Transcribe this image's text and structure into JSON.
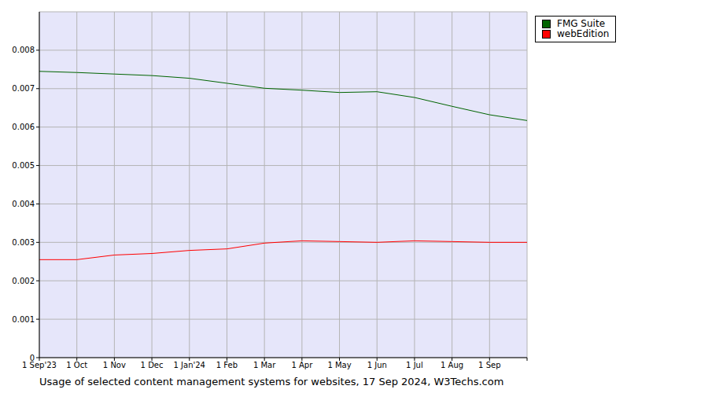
{
  "chart_data": {
    "type": "line",
    "title": "Usage of selected content management systems for websites, 17 Sep 2024, W3Techs.com",
    "categories": [
      "1 Sep'23",
      "1 Oct",
      "1 Nov",
      "1 Dec",
      "1 Jan'24",
      "1 Feb",
      "1 Mar",
      "1 Apr",
      "1 May",
      "1 Jun",
      "1 Jul",
      "1 Aug",
      "1 Sep",
      null
    ],
    "series": [
      {
        "name": "FMG Suite",
        "color": "#006400",
        "values": [
          0.00745,
          0.00742,
          0.00738,
          0.00734,
          0.00727,
          0.00714,
          0.00701,
          0.00696,
          0.0069,
          0.00692,
          0.00677,
          0.00654,
          0.00632,
          0.00617
        ]
      },
      {
        "name": "webEdition",
        "color": "#ff0000",
        "values": [
          0.00255,
          0.00255,
          0.00267,
          0.00271,
          0.00279,
          0.00283,
          0.00298,
          0.00304,
          0.00302,
          0.003,
          0.00304,
          0.00302,
          0.003,
          0.003
        ]
      }
    ],
    "ylim": [
      0,
      0.009
    ],
    "yticks": [
      0,
      0.001,
      0.002,
      0.003,
      0.004,
      0.005,
      0.006,
      0.007,
      0.008
    ],
    "grid": true,
    "legend": "top right"
  }
}
